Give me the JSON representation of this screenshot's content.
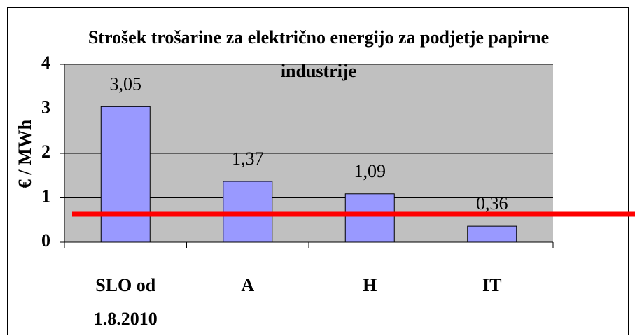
{
  "chart_data": {
    "type": "bar",
    "title": "Strošek trošarine za električno energijo za podjetje papirne industrije",
    "ylabel": "€ / MWh",
    "categories": [
      "SLO od 1.8.2010",
      "A",
      "H",
      "IT"
    ],
    "values": [
      3.05,
      1.37,
      1.09,
      0.36
    ],
    "value_labels": [
      "3,05",
      "1,37",
      "1,09",
      "0,36"
    ],
    "color": "#9999ff",
    "ylim": [
      0,
      4
    ],
    "yticks": [
      0,
      1,
      2,
      3,
      4
    ],
    "grid": true,
    "reference_line": {
      "value": 0.63,
      "color": "#ff0000"
    }
  }
}
